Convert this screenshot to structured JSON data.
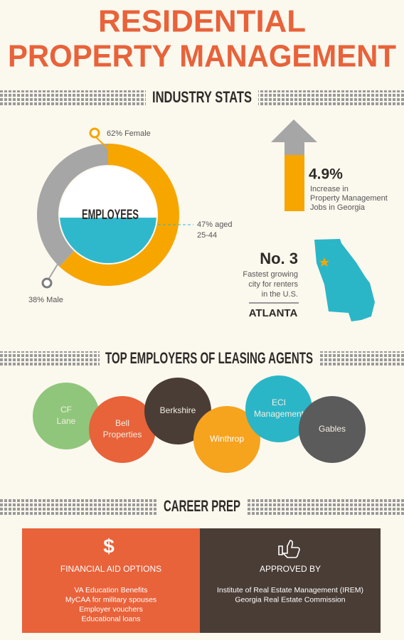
{
  "header": {
    "title_line1": "RESIDENTIAL",
    "title_line2": "PROPERTY MANAGEMENT"
  },
  "industry_stats": {
    "heading": "INDUSTRY STATS",
    "donut_label": "EMPLOYEES",
    "gender": [
      {
        "label": "62% Female",
        "value": 62,
        "color": "#f7a600"
      },
      {
        "label": "38% Male",
        "value": 38,
        "color": "#a6a6a6"
      }
    ],
    "age": {
      "label_line1": "47% aged",
      "label_line2": "25-44",
      "value": 47,
      "color": "#2fb8cc"
    },
    "growth": {
      "value": "4.9%",
      "caption": [
        "Increase in",
        "Property Management",
        "Jobs in Georgia"
      ]
    },
    "rank": {
      "title": "No. 3",
      "caption": [
        "Fastest growing",
        "city for renters",
        "in the U.S."
      ],
      "city": "ATLANTA"
    }
  },
  "employers": {
    "heading": "TOP EMPLOYERS OF LEASING AGENTS",
    "items": [
      {
        "name": [
          "CF",
          "Lane"
        ],
        "color": "#8fc67b"
      },
      {
        "name": [
          "Bell",
          "Properties"
        ],
        "color": "#e8623a"
      },
      {
        "name": [
          "Berkshire"
        ],
        "color": "#4a3d36"
      },
      {
        "name": [
          "Winthrop"
        ],
        "color": "#f6a31e"
      },
      {
        "name": [
          "ECI",
          "Management"
        ],
        "color": "#2bb6c7"
      },
      {
        "name": [
          "Gables"
        ],
        "color": "#5b5b5b"
      }
    ]
  },
  "career_prep": {
    "heading": "CAREER PREP",
    "boxes": [
      {
        "title": "FINANCIAL AID OPTIONS",
        "items": [
          "VA Education Benefits",
          "MyCAA for military spouses",
          "Employer vouchers",
          "Educational loans"
        ]
      },
      {
        "title": "APPROVED BY",
        "items": [
          "Institute of Real Estate Management (IREM)",
          "Georgia Real Estate Commission"
        ]
      }
    ]
  }
}
